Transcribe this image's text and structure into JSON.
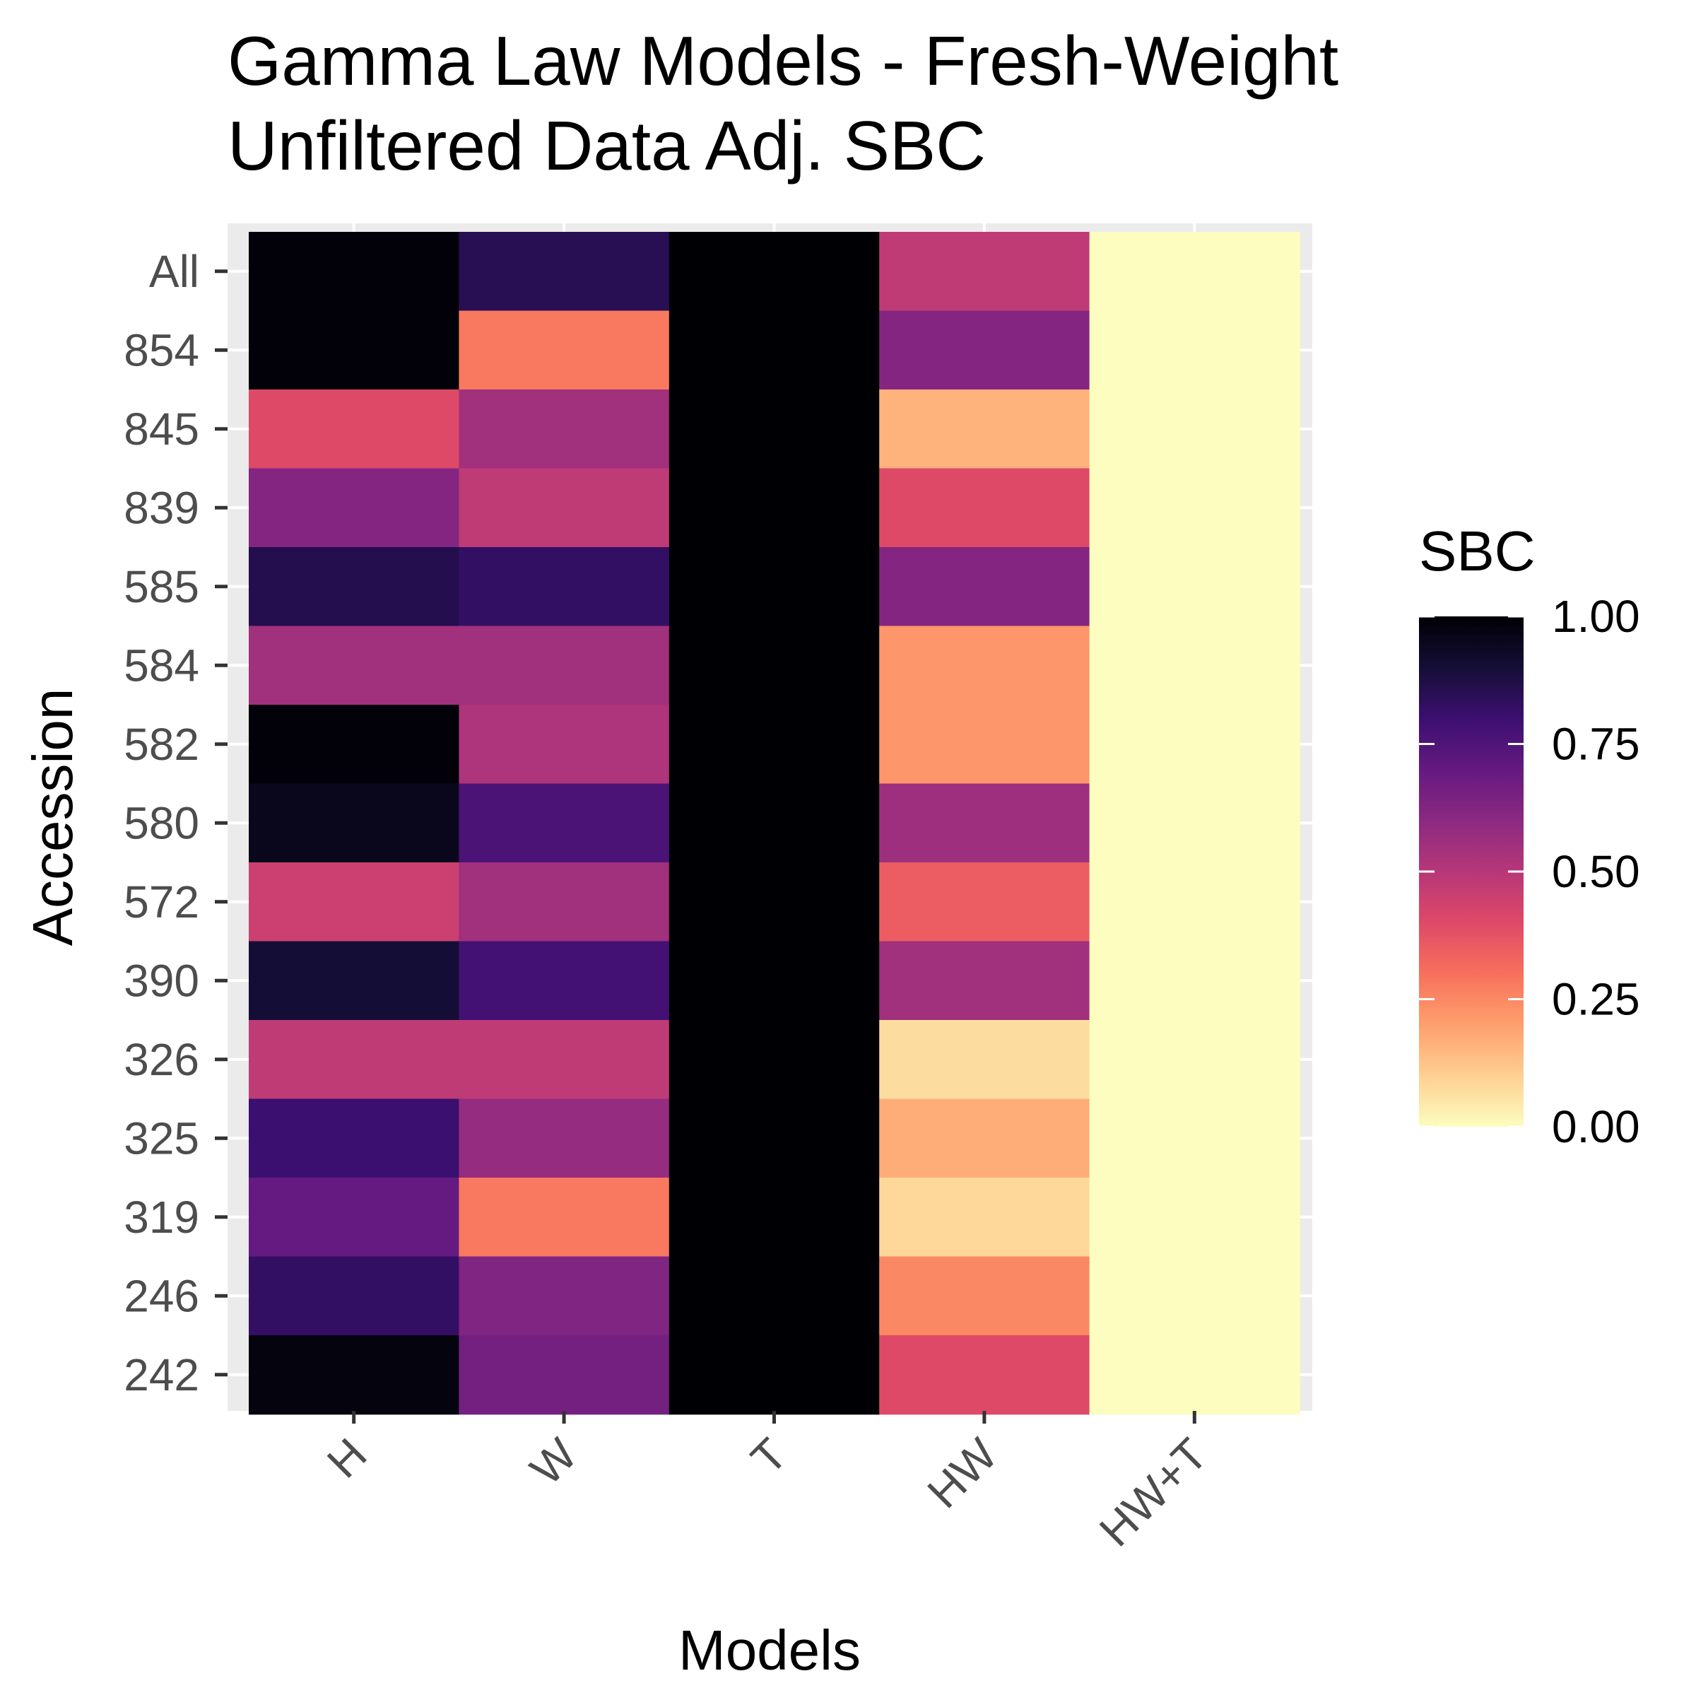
{
  "chart_data": {
    "type": "heatmap",
    "title": "Gamma Law Models - Fresh-Weight",
    "subtitle": "Unfiltered Data Adj. SBC",
    "xlabel": "Models",
    "ylabel": "Accession",
    "x_categories": [
      "H",
      "W",
      "T",
      "HW",
      "HW+T"
    ],
    "y_categories": [
      "All",
      "854",
      "845",
      "839",
      "585",
      "584",
      "582",
      "580",
      "572",
      "390",
      "326",
      "325",
      "319",
      "246",
      "242"
    ],
    "values": [
      [
        0.99,
        0.85,
        1.0,
        0.48,
        0.0
      ],
      [
        0.99,
        0.28,
        1.0,
        0.62,
        0.0
      ],
      [
        0.4,
        0.55,
        1.0,
        0.16,
        0.0
      ],
      [
        0.62,
        0.48,
        1.0,
        0.4,
        0.0
      ],
      [
        0.86,
        0.82,
        1.0,
        0.62,
        0.0
      ],
      [
        0.55,
        0.55,
        1.0,
        0.22,
        0.0
      ],
      [
        0.99,
        0.52,
        1.0,
        0.22,
        0.0
      ],
      [
        0.95,
        0.76,
        1.0,
        0.56,
        0.0
      ],
      [
        0.45,
        0.55,
        1.0,
        0.35,
        0.0
      ],
      [
        0.9,
        0.78,
        1.0,
        0.55,
        0.0
      ],
      [
        0.48,
        0.48,
        1.0,
        0.07,
        0.0
      ],
      [
        0.8,
        0.58,
        1.0,
        0.17,
        0.0
      ],
      [
        0.7,
        0.28,
        1.0,
        0.08,
        0.0
      ],
      [
        0.82,
        0.63,
        1.0,
        0.25,
        0.0
      ],
      [
        0.98,
        0.66,
        1.0,
        0.4,
        0.0
      ]
    ],
    "legend": {
      "title": "SBC",
      "ticks": [
        "1.00",
        "0.75",
        "0.50",
        "0.25",
        "0.00"
      ],
      "tick_values": [
        1.0,
        0.75,
        0.5,
        0.25,
        0.0
      ],
      "range": [
        0,
        1
      ],
      "placement": "right"
    },
    "colormap": "magma",
    "grid": true,
    "colors": {
      "panel_background": "#ebebeb",
      "gridline": "#ffffff",
      "text": "#000000",
      "tick_text": "#4d4d4d",
      "tick_mark": "#333333"
    }
  }
}
